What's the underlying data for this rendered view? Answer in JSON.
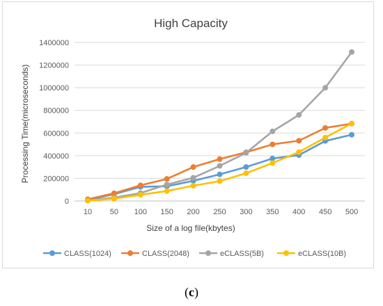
{
  "figure": {
    "panel_label_open": "(",
    "panel_label_letter": "c",
    "panel_label_close": ")"
  },
  "chart_data": {
    "type": "line",
    "title": "High Capacity",
    "xlabel": "Size of  a log file(kbytes)",
    "ylabel": "Processing Time(microseconds)",
    "categories": [
      "10",
      "50",
      "100",
      "150",
      "200",
      "250",
      "300",
      "350",
      "400",
      "450",
      "500"
    ],
    "ylim": [
      0,
      1400000
    ],
    "yticks": [
      "0",
      "200000",
      "400000",
      "600000",
      "800000",
      "1000000",
      "1200000",
      "1400000"
    ],
    "grid": true,
    "legend": "bottom",
    "series": [
      {
        "name": "CLASS(1024)",
        "color": "#5b9bd5",
        "values": [
          10000,
          60000,
          125000,
          130000,
          178000,
          235000,
          300000,
          375000,
          405000,
          530000,
          585000
        ]
      },
      {
        "name": "CLASS(2048)",
        "color": "#ed7d31",
        "values": [
          15000,
          68000,
          138000,
          195000,
          300000,
          370000,
          430000,
          500000,
          532000,
          645000,
          683000
        ]
      },
      {
        "name": "eCLASS(5B)",
        "color": "#a5a5a5",
        "values": [
          5000,
          30000,
          70000,
          145000,
          205000,
          310000,
          425000,
          615000,
          760000,
          1000000,
          1315000
        ]
      },
      {
        "name": "eCLASS(10B)",
        "color": "#ffc000",
        "values": [
          3000,
          20000,
          55000,
          88000,
          135000,
          175000,
          245000,
          335000,
          432000,
          560000,
          685000
        ]
      }
    ]
  }
}
